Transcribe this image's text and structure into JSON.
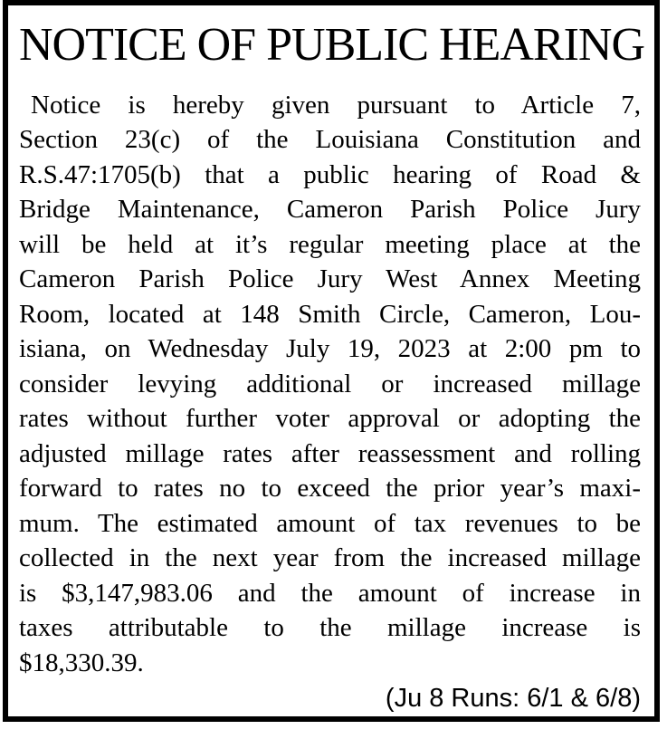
{
  "colors": {
    "text": "#000000",
    "border": "#000000",
    "background": "#ffffff"
  },
  "notice": {
    "title": "NOTICE OF PUBLIC HEARING",
    "body_lines": [
      "Notice is hereby given pursuant to Article 7,",
      "Section 23(c) of the Louisiana Constitution and",
      "R.S.47:1705(b) that a public hearing of Road &",
      "Bridge Maintenance, Cameron Parish Police Jury",
      "will be held at it’s regular meeting place at the",
      "Cameron Parish Police Jury West Annex Meeting",
      "Room, located at 148 Smith Circle, Cameron, Lou-",
      "isiana, on Wednesday July 19, 2023 at 2:00 pm to",
      "consider levying additional or increased millage",
      "rates without further voter approval or adopting the",
      "adjusted millage rates after reassessment and rolling",
      "forward to rates no to exceed the prior year’s maxi-",
      "mum. The estimated amount of tax revenues to be",
      "collected in the next year from the increased millage",
      "is $3,147,983.06 and the amount of increase in",
      "taxes attributable to the millage increase is",
      "$18,330.39."
    ],
    "run_note": "(Ju 8 Runs: 6/1 & 6/8)"
  }
}
